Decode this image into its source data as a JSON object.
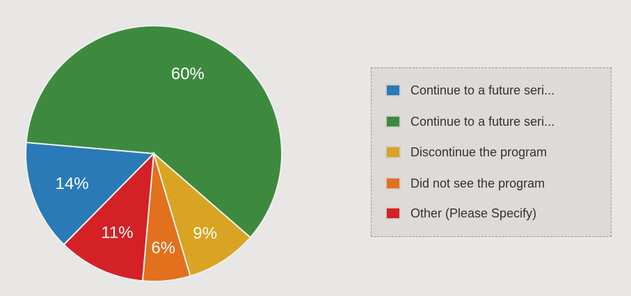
{
  "chart_data": {
    "type": "pie",
    "title": "",
    "start_angle_deg": 224.6,
    "direction": "clockwise",
    "legend_position": "right",
    "slices": [
      {
        "label": "Continue to a future seri...",
        "value": 14,
        "data_label": "14%",
        "color": "#2a7ab8"
      },
      {
        "label": "Continue to a future seri...",
        "value": 60,
        "data_label": "60%",
        "color": "#3d8a3f"
      },
      {
        "label": "Discontinue the program",
        "value": 9,
        "data_label": "9%",
        "color": "#d9a421"
      },
      {
        "label": "Did not see the program",
        "value": 6,
        "data_label": "6%",
        "color": "#e2701d"
      },
      {
        "label": "Other (Please Specify)",
        "value": 11,
        "data_label": "11%",
        "color": "#d42126"
      }
    ]
  }
}
